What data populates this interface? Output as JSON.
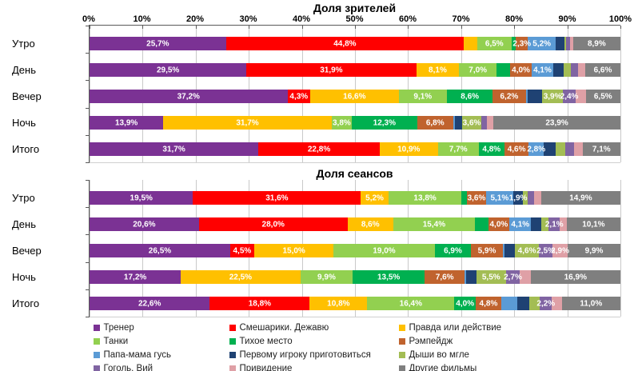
{
  "chart_data": [
    {
      "type": "bar",
      "variant": "horizontal-stacked-100",
      "title": "Доля зрителей",
      "categories": [
        "Утро",
        "День",
        "Вечер",
        "Ночь",
        "Итого"
      ],
      "axis": {
        "position": "top",
        "range": [
          0,
          100
        ],
        "ticks": [
          "0%",
          "10%",
          "20%",
          "30%",
          "40%",
          "50%",
          "60%",
          "70%",
          "80%",
          "90%",
          "100%"
        ],
        "grid": true
      },
      "series": [
        {
          "name": "Тренер",
          "color": "#7B3294",
          "values": [
            25.7,
            29.5,
            37.2,
            13.9,
            31.7
          ],
          "labels": [
            "25,7%",
            "29,5%",
            "37,2%",
            "13,9%",
            "31,7%"
          ]
        },
        {
          "name": "Смешарики. Дежавю",
          "color": "#FF0000",
          "values": [
            44.8,
            31.9,
            4.3,
            0,
            22.8
          ],
          "labels": [
            "44,8%",
            "31,9%",
            "4,3%",
            null,
            "22,8%"
          ]
        },
        {
          "name": "Правда или действие",
          "color": "#FFC000",
          "values": [
            2.5,
            8.1,
            16.6,
            31.7,
            10.9
          ],
          "labels": [
            null,
            "8,1%",
            "16,6%",
            "31,7%",
            "10,9%"
          ]
        },
        {
          "name": "Танки",
          "color": "#92D050",
          "values": [
            6.5,
            7.0,
            9.1,
            3.8,
            7.7
          ],
          "labels": [
            "6,5%",
            "7,0%",
            "9,1%",
            "3,8%",
            "7,7%"
          ]
        },
        {
          "name": "Тихое место",
          "color": "#00B050",
          "values": [
            0.8,
            2.6,
            8.6,
            12.3,
            4.8
          ],
          "labels": [
            null,
            null,
            "8,6%",
            "12,3%",
            "4,8%"
          ]
        },
        {
          "name": "Рэмпейдж",
          "color": "#C0632E",
          "values": [
            2.3,
            4.0,
            6.2,
            6.8,
            4.6
          ],
          "labels": [
            "2,3%",
            "4,0%",
            "6,2%",
            "6,8%",
            "4,6%"
          ]
        },
        {
          "name": "Папа-мама гусь",
          "color": "#5B9BD5",
          "values": [
            5.2,
            4.1,
            0.4,
            0.3,
            2.8
          ],
          "labels": [
            "5,2%",
            "4,1%",
            null,
            null,
            "2,8%"
          ]
        },
        {
          "name": "Первому игроку приготовиться",
          "color": "#1F4273",
          "values": [
            1.6,
            2.0,
            2.7,
            1.4,
            2.2
          ],
          "labels": [
            null,
            null,
            null,
            null,
            null
          ]
        },
        {
          "name": "Дыши во мгле",
          "color": "#A3BD54",
          "values": [
            0.4,
            1.3,
            3.9,
            3.6,
            1.9
          ],
          "labels": [
            null,
            null,
            "3,9%",
            "3,6%",
            null
          ]
        },
        {
          "name": "Гоголь. Вий",
          "color": "#8064A2",
          "values": [
            0.7,
            1.4,
            2.4,
            1.1,
            1.6
          ],
          "labels": [
            null,
            null,
            "2,4%",
            null,
            null
          ]
        },
        {
          "name": "Привидение",
          "color": "#DFA0A6",
          "values": [
            0.6,
            1.3,
            1.9,
            1.2,
            1.6
          ],
          "labels": [
            null,
            null,
            null,
            null,
            null
          ]
        },
        {
          "name": "Другие фильмы",
          "color": "#7F7F7F",
          "values": [
            8.9,
            6.6,
            6.5,
            23.9,
            7.1
          ],
          "labels": [
            "8,9%",
            "6,6%",
            "6,5%",
            "23,9%",
            "7,1%"
          ]
        }
      ]
    },
    {
      "type": "bar",
      "variant": "horizontal-stacked-100",
      "title": "Доля сеансов",
      "categories": [
        "Утро",
        "День",
        "Вечер",
        "Ночь",
        "Итого"
      ],
      "axis": {
        "position": "none",
        "range": [
          0,
          100
        ],
        "ticks": [],
        "grid": true
      },
      "series": [
        {
          "name": "Тренер",
          "color": "#7B3294",
          "values": [
            19.5,
            20.6,
            26.5,
            17.2,
            22.6
          ],
          "labels": [
            "19,5%",
            "20,6%",
            "26,5%",
            "17,2%",
            "22,6%"
          ]
        },
        {
          "name": "Смешарики. Дежавю",
          "color": "#FF0000",
          "values": [
            31.6,
            28.0,
            4.5,
            0,
            18.8
          ],
          "labels": [
            "31,6%",
            "28,0%",
            "4,5%",
            null,
            "18,8%"
          ]
        },
        {
          "name": "Правда или действие",
          "color": "#FFC000",
          "values": [
            5.2,
            8.6,
            15.0,
            22.5,
            10.8
          ],
          "labels": [
            "5,2%",
            "8,6%",
            "15,0%",
            "22,5%",
            "10,8%"
          ]
        },
        {
          "name": "Танки",
          "color": "#92D050",
          "values": [
            13.8,
            15.4,
            19.0,
            9.9,
            16.4
          ],
          "labels": [
            "13,8%",
            "15,4%",
            "19,0%",
            "9,9%",
            "16,4%"
          ]
        },
        {
          "name": "Тихое место",
          "color": "#00B050",
          "values": [
            1.0,
            2.5,
            6.9,
            13.5,
            4.0
          ],
          "labels": [
            null,
            null,
            "6,9%",
            "13,5%",
            "4,0%"
          ]
        },
        {
          "name": "Рэмпейдж",
          "color": "#C0632E",
          "values": [
            3.6,
            4.0,
            5.9,
            7.6,
            4.8
          ],
          "labels": [
            "3,6%",
            "4,0%",
            "5,9%",
            "7,6%",
            "4,8%"
          ]
        },
        {
          "name": "Папа-мама гусь",
          "color": "#5B9BD5",
          "values": [
            5.1,
            4.1,
            0.4,
            0.3,
            3.0
          ],
          "labels": [
            "5,1%",
            "4,1%",
            null,
            null,
            null
          ]
        },
        {
          "name": "Первому игроку приготовиться",
          "color": "#1F4273",
          "values": [
            1.9,
            1.9,
            1.9,
            1.9,
            2.3
          ],
          "labels": [
            "1,9%",
            null,
            null,
            null,
            null
          ]
        },
        {
          "name": "Дыши во мгле",
          "color": "#A3BD54",
          "values": [
            0.8,
            1.4,
            4.6,
            5.5,
            2.0
          ],
          "labels": [
            null,
            null,
            "4,6%",
            "5,5%",
            null
          ]
        },
        {
          "name": "Гоголь. Вий",
          "color": "#8064A2",
          "values": [
            1.3,
            2.1,
            2.5,
            2.7,
            2.2
          ],
          "labels": [
            null,
            "2,1%",
            "2,5%",
            "2,7%",
            "2,2%"
          ]
        },
        {
          "name": "Привидение",
          "color": "#DFA0A6",
          "values": [
            1.3,
            1.3,
            2.9,
            2.0,
            1.9
          ],
          "labels": [
            null,
            null,
            "2,9%",
            null,
            null
          ]
        },
        {
          "name": "Другие фильмы",
          "color": "#7F7F7F",
          "values": [
            14.9,
            10.1,
            9.9,
            16.9,
            11.0
          ],
          "labels": [
            "14,9%",
            "10,1%",
            "9,9%",
            "16,9%",
            "11,0%"
          ]
        }
      ]
    }
  ],
  "legend": {
    "columns": 3,
    "items": [
      "Тренер",
      "Смешарики. Дежавю",
      "Правда или действие",
      "Танки",
      "Тихое место",
      "Рэмпейдж",
      "Папа-мама гусь",
      "Первому игроку приготовиться",
      "Дыши во мгле",
      "Гоголь. Вий",
      "Привидение",
      "Другие фильмы"
    ]
  }
}
